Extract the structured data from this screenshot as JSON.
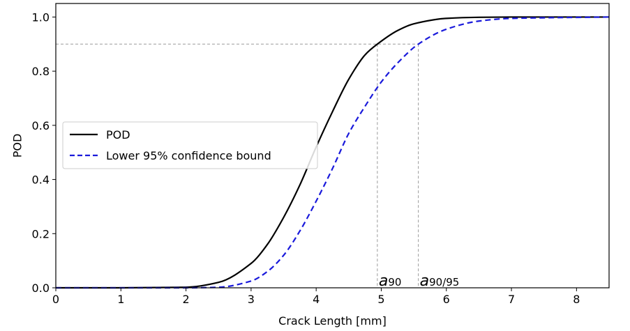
{
  "chart_data": {
    "type": "line",
    "xlabel": "Crack Length [mm]",
    "ylabel": "POD",
    "xlim": [
      0,
      8.5
    ],
    "ylim": [
      0,
      1.05
    ],
    "xticks": [
      0,
      1,
      2,
      3,
      4,
      5,
      6,
      7,
      8
    ],
    "yticks": [
      0.0,
      0.2,
      0.4,
      0.6,
      0.8,
      1.0
    ],
    "ytick_labels": [
      "0.0",
      "0.2",
      "0.4",
      "0.6",
      "0.8",
      "1.0"
    ],
    "grid": false,
    "legend_position": "center-left",
    "series": [
      {
        "name": "POD",
        "style": "solid",
        "color": "#000000",
        "x": [
          0,
          1,
          2,
          2.5,
          3,
          3.25,
          3.5,
          3.75,
          4,
          4.25,
          4.5,
          4.75,
          4.94,
          5.25,
          5.5,
          6,
          6.5,
          7,
          8.5
        ],
        "y": [
          0,
          0,
          0.002,
          0.02,
          0.09,
          0.16,
          0.26,
          0.38,
          0.52,
          0.65,
          0.77,
          0.86,
          0.9,
          0.95,
          0.975,
          0.995,
          0.999,
          1.0,
          1.0
        ]
      },
      {
        "name": "Lower 95% confidence bound",
        "style": "dashed",
        "color": "#1a1adb",
        "x": [
          0,
          1,
          2,
          2.5,
          3,
          3.25,
          3.5,
          3.75,
          4,
          4.25,
          4.5,
          4.75,
          5,
          5.25,
          5.57,
          6,
          6.5,
          7,
          8.5
        ],
        "y": [
          0,
          0,
          0,
          0.002,
          0.025,
          0.06,
          0.12,
          0.21,
          0.32,
          0.44,
          0.57,
          0.67,
          0.76,
          0.83,
          0.9,
          0.955,
          0.985,
          0.995,
          1.0
        ]
      }
    ],
    "reference_lines": {
      "y_level": 0.9,
      "a90_x": 4.94,
      "a9095_x": 5.57,
      "color": "#999999"
    },
    "annotations": [
      {
        "id": "a90",
        "main": "a",
        "sub": "90",
        "x": 4.94
      },
      {
        "id": "a9095",
        "main": "a",
        "sub": "90/95",
        "x": 5.57
      }
    ]
  }
}
